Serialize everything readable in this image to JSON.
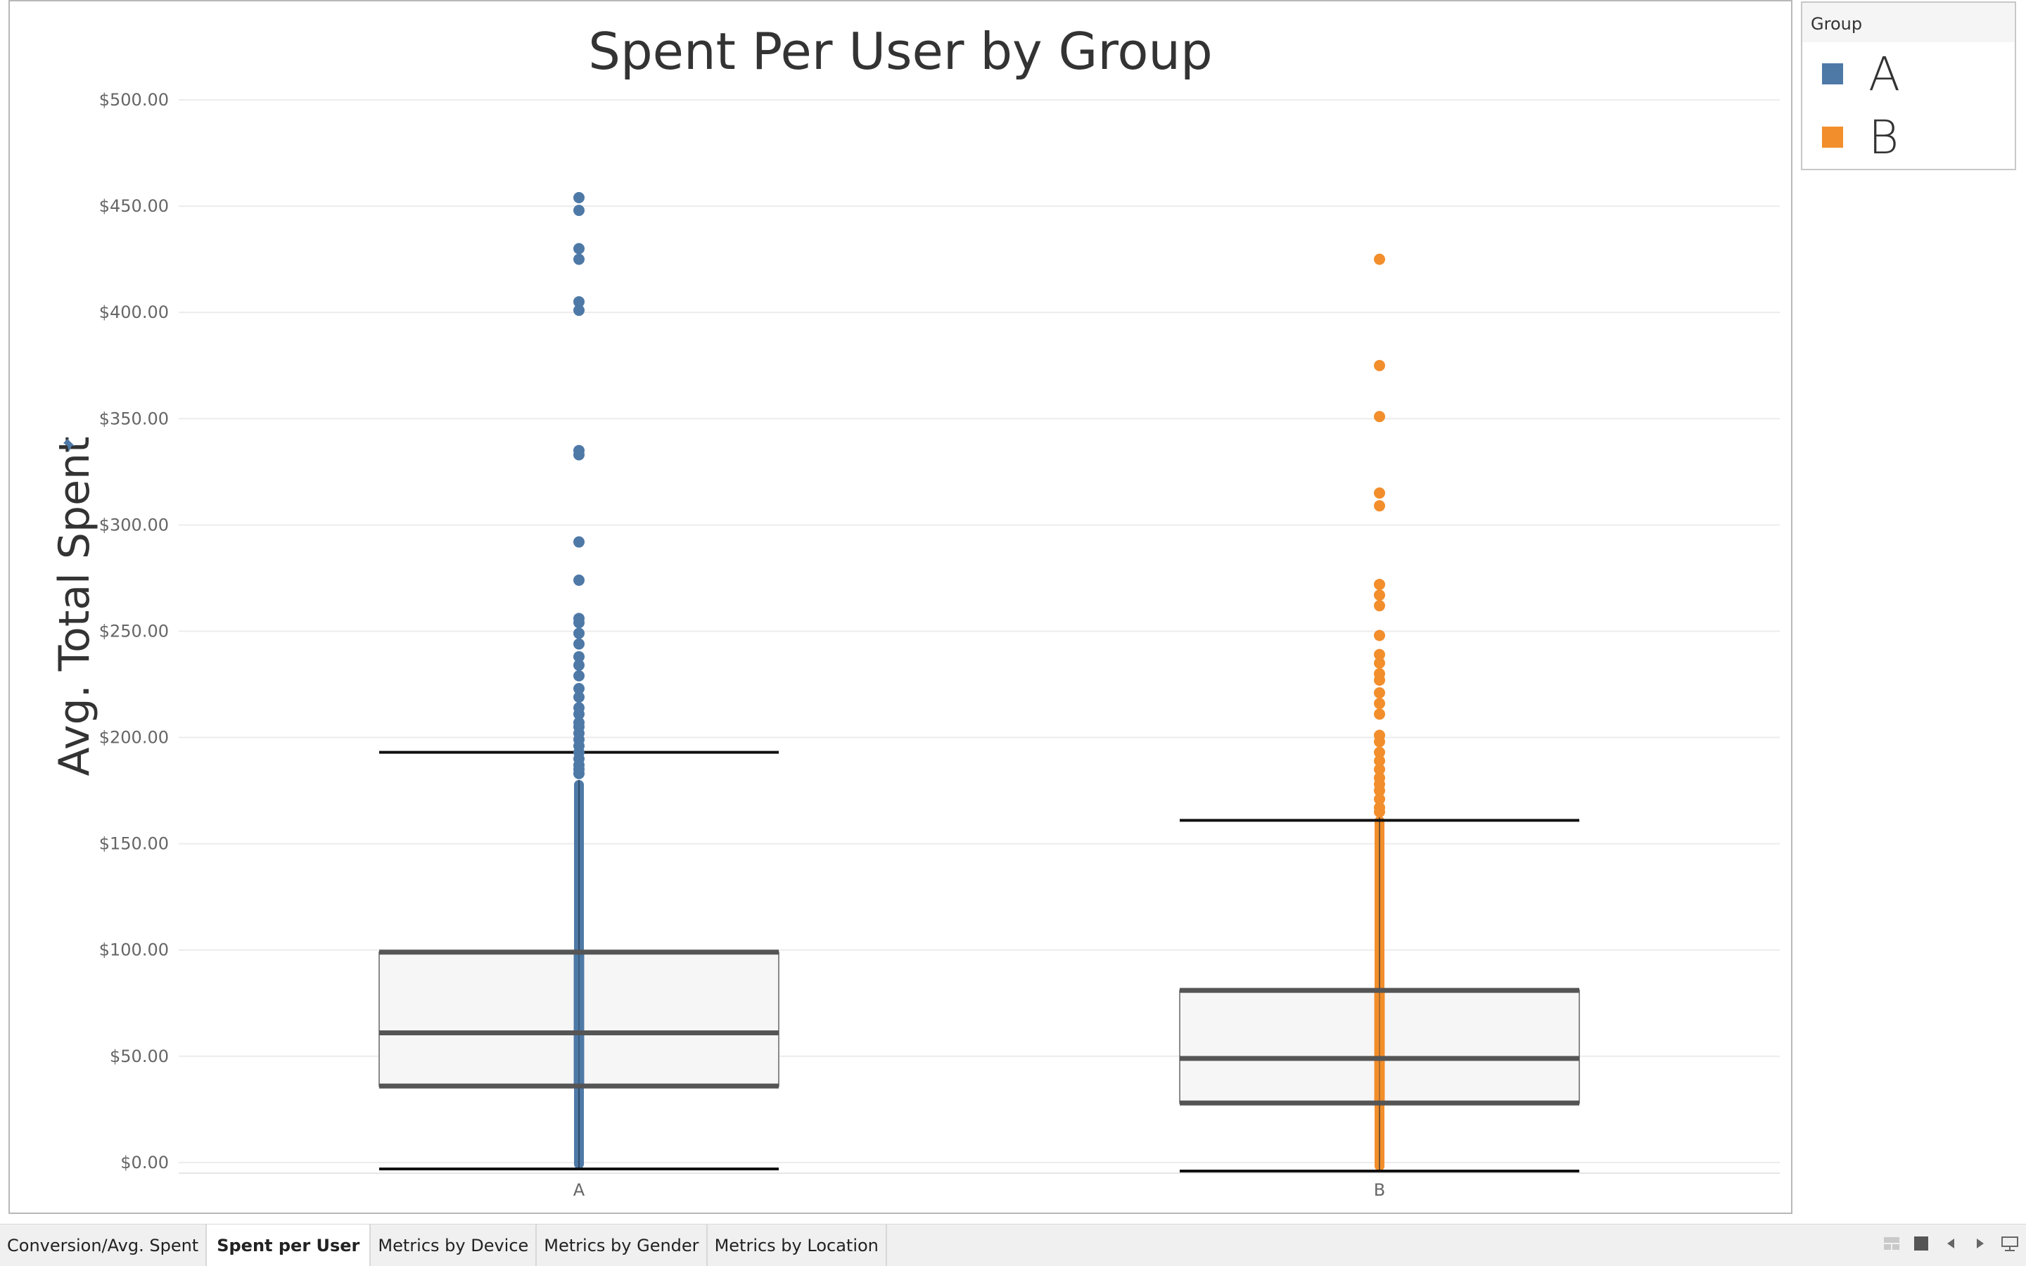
{
  "chart_data": {
    "type": "box",
    "title": "Spent Per User by Group",
    "ylabel": "Avg. Total Spent",
    "xlabel": "",
    "ylim": [
      -5,
      500
    ],
    "yticks": [
      0,
      50,
      100,
      150,
      200,
      250,
      300,
      350,
      400,
      450,
      500
    ],
    "ytick_labels": [
      "$0.00",
      "$50.00",
      "$100.00",
      "$150.00",
      "$200.00",
      "$250.00",
      "$300.00",
      "$350.00",
      "$400.00",
      "$450.00",
      "$500.00"
    ],
    "grid": true,
    "legend_position": "top-right",
    "categories": [
      "A",
      "B"
    ],
    "series": [
      {
        "name": "A",
        "color": "#4e79a7",
        "box": {
          "whisker_low": -3,
          "q1": 36,
          "median": 61,
          "q3": 99,
          "whisker_high": 193
        },
        "dense_range": [
          -3,
          180
        ],
        "outliers": [
          454,
          448,
          430,
          425,
          405,
          401,
          335,
          333,
          292,
          274,
          256,
          254,
          249,
          244,
          238,
          234,
          229,
          223,
          219,
          214,
          211,
          207,
          205,
          202,
          199,
          196,
          193,
          190,
          187,
          185,
          183
        ]
      },
      {
        "name": "B",
        "color": "#f28e2b",
        "box": {
          "whisker_low": -4,
          "q1": 28,
          "median": 49,
          "q3": 81,
          "whisker_high": 161
        },
        "dense_range": [
          -4,
          163
        ],
        "outliers": [
          425,
          375,
          351,
          315,
          309,
          272,
          267,
          262,
          248,
          239,
          235,
          230,
          227,
          221,
          216,
          211,
          201,
          198,
          193,
          189,
          185,
          181,
          178,
          175,
          171,
          167,
          165
        ]
      }
    ]
  },
  "legend": {
    "title": "Group",
    "items": [
      {
        "label": "A",
        "color": "#4e79a7"
      },
      {
        "label": "B",
        "color": "#f28e2b"
      }
    ]
  },
  "tabs": [
    {
      "label": "Conversion/Avg. Spent",
      "active": false
    },
    {
      "label": "Spent per User",
      "active": true
    },
    {
      "label": "Metrics by Device",
      "active": false
    },
    {
      "label": "Metrics by Gender",
      "active": false
    },
    {
      "label": "Metrics by Location",
      "active": false
    }
  ],
  "controls": [
    {
      "icon": "grid-view-icon"
    },
    {
      "icon": "single-view-icon"
    },
    {
      "icon": "prev-sheet-icon"
    },
    {
      "icon": "next-sheet-icon"
    },
    {
      "icon": "presentation-mode-icon"
    }
  ]
}
